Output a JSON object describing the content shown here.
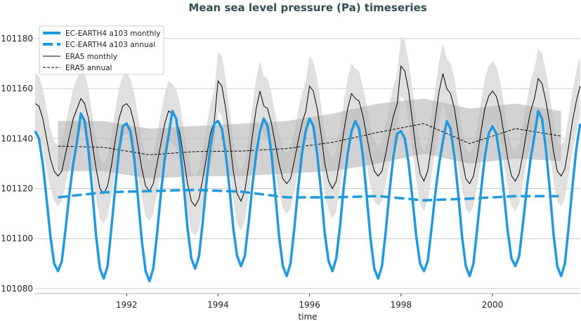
{
  "chart_data": {
    "type": "line",
    "title": "Mean sea level pressure (Pa) timeseries",
    "xlabel": "time",
    "ylabel": "",
    "xlim": [
      1990.0,
      2001.92
    ],
    "ylim": [
      101078,
      101187
    ],
    "xticks": [
      1992,
      1994,
      1996,
      1998,
      2000
    ],
    "yticks": [
      101080,
      101100,
      101120,
      101140,
      101160,
      101180
    ],
    "grid": "horizontal",
    "legend_placement": "top-left",
    "monthly_time": {
      "start_year": 1990,
      "start_month": 1,
      "count": 144
    },
    "annual_time": [
      1990.5,
      1991.5,
      1992.5,
      1993.5,
      1994.5,
      1995.5,
      1996.5,
      1997.5,
      1998.5,
      1999.5,
      2000.5,
      2001.5
    ],
    "series": [
      {
        "name": "EC-EARTH4 a103 monthly",
        "color": "#1f9ae0",
        "style": "solid-thick",
        "values": [
          101143,
          101140,
          101130,
          101116,
          101101,
          101090,
          101087,
          101091,
          101104,
          101118,
          101130,
          101139,
          101150,
          101147,
          101135,
          101119,
          101101,
          101088,
          101084,
          101089,
          101104,
          101120,
          101135,
          101145,
          101146,
          101143,
          101132,
          101116,
          101099,
          101087,
          101083,
          101088,
          101102,
          101118,
          101132,
          101141,
          101151,
          101148,
          101137,
          101121,
          101104,
          101092,
          101088,
          101093,
          101107,
          101123,
          101137,
          101146,
          101147,
          101144,
          101134,
          101120,
          101104,
          101093,
          101089,
          101093,
          101106,
          101121,
          101134,
          101143,
          101148,
          101145,
          101134,
          101118,
          101101,
          101089,
          101085,
          101090,
          101104,
          101120,
          101134,
          101143,
          101148,
          101145,
          101134,
          101119,
          101102,
          101091,
          101087,
          101092,
          101105,
          101121,
          101134,
          101143,
          101147,
          101144,
          101133,
          101117,
          101100,
          101088,
          101084,
          101089,
          101103,
          101119,
          101133,
          101142,
          101143,
          101140,
          101130,
          101116,
          101101,
          101090,
          101087,
          101091,
          101104,
          101118,
          101130,
          101139,
          101147,
          101144,
          101133,
          101118,
          101101,
          101089,
          101085,
          101090,
          101104,
          101119,
          101133,
          101142,
          101145,
          101142,
          101132,
          101118,
          101103,
          101092,
          101089,
          101093,
          101106,
          101120,
          101132,
          101141,
          101151,
          101148,
          101136,
          101120,
          101102,
          101089,
          101085,
          101090,
          101105,
          101121,
          101136,
          101146
        ]
      },
      {
        "name": "EC-EARTH4 a103 annual",
        "color": "#1f9ae0",
        "style": "dashed-thick",
        "values": [
          101116.5,
          101118.5,
          101119,
          101119.5,
          101118.8,
          101116.5,
          101116.5,
          101117,
          101115.3,
          101116,
          101117,
          101117
        ]
      },
      {
        "name": "ERA5 monthly",
        "color": "#000000",
        "style": "solid-thin",
        "spread": 12,
        "spread_color": "#dddddd",
        "values": [
          101154,
          101153,
          101148,
          101140,
          101132,
          101127,
          101125,
          101127,
          101134,
          101141,
          101148,
          101152,
          101156,
          101154,
          101148,
          101138,
          101128,
          101120,
          101118,
          101121,
          101129,
          101139,
          101148,
          101153,
          101154,
          101152,
          101146,
          101137,
          101128,
          101121,
          101119,
          101122,
          101130,
          101138,
          101146,
          101151,
          101150,
          101148,
          101142,
          101132,
          101122,
          101115,
          101113,
          101116,
          101124,
          101133,
          101142,
          101147,
          101163,
          101161,
          101152,
          101140,
          101127,
          101118,
          101115,
          101119,
          101129,
          101141,
          101152,
          101159,
          101153,
          101152,
          101146,
          101138,
          101130,
          101124,
          101122,
          101124,
          101131,
          101139,
          101146,
          101151,
          101161,
          101159,
          101152,
          101142,
          101130,
          101123,
          101120,
          101123,
          101132,
          101143,
          101152,
          101158,
          101156,
          101155,
          101149,
          101141,
          101133,
          101127,
          101125,
          101127,
          101134,
          101142,
          101149,
          101154,
          101169,
          101167,
          101159,
          101147,
          101135,
          101126,
          101123,
          101127,
          101137,
          101148,
          101159,
          101166,
          101160,
          101158,
          101152,
          101142,
          101132,
          101124,
          101122,
          101125,
          101133,
          101143,
          101152,
          101157,
          101159,
          101157,
          101151,
          101142,
          101132,
          101125,
          101123,
          101126,
          101134,
          101143,
          101151,
          101156,
          101164,
          101162,
          101155,
          101146,
          101135,
          101127,
          101125,
          101128,
          101137,
          101147,
          101155,
          101161
        ]
      },
      {
        "name": "ERA5 annual",
        "color": "#000000",
        "style": "dashed-thin",
        "values": [
          101137,
          101136.5,
          101133.5,
          101134.8,
          101135,
          101136,
          101138.5,
          101142.5,
          101146,
          101138,
          101144,
          101141
        ],
        "band_upper": [
          101147,
          101147,
          101144,
          101145,
          101146,
          101147,
          101150,
          101154,
          101156,
          101152,
          101154,
          101151
        ],
        "band_lower": [
          101127,
          101127,
          101124,
          101125,
          101125,
          101126,
          101127,
          101130,
          101134,
          101130,
          101132,
          101131
        ],
        "band_color": "#b4b4b4"
      }
    ]
  }
}
